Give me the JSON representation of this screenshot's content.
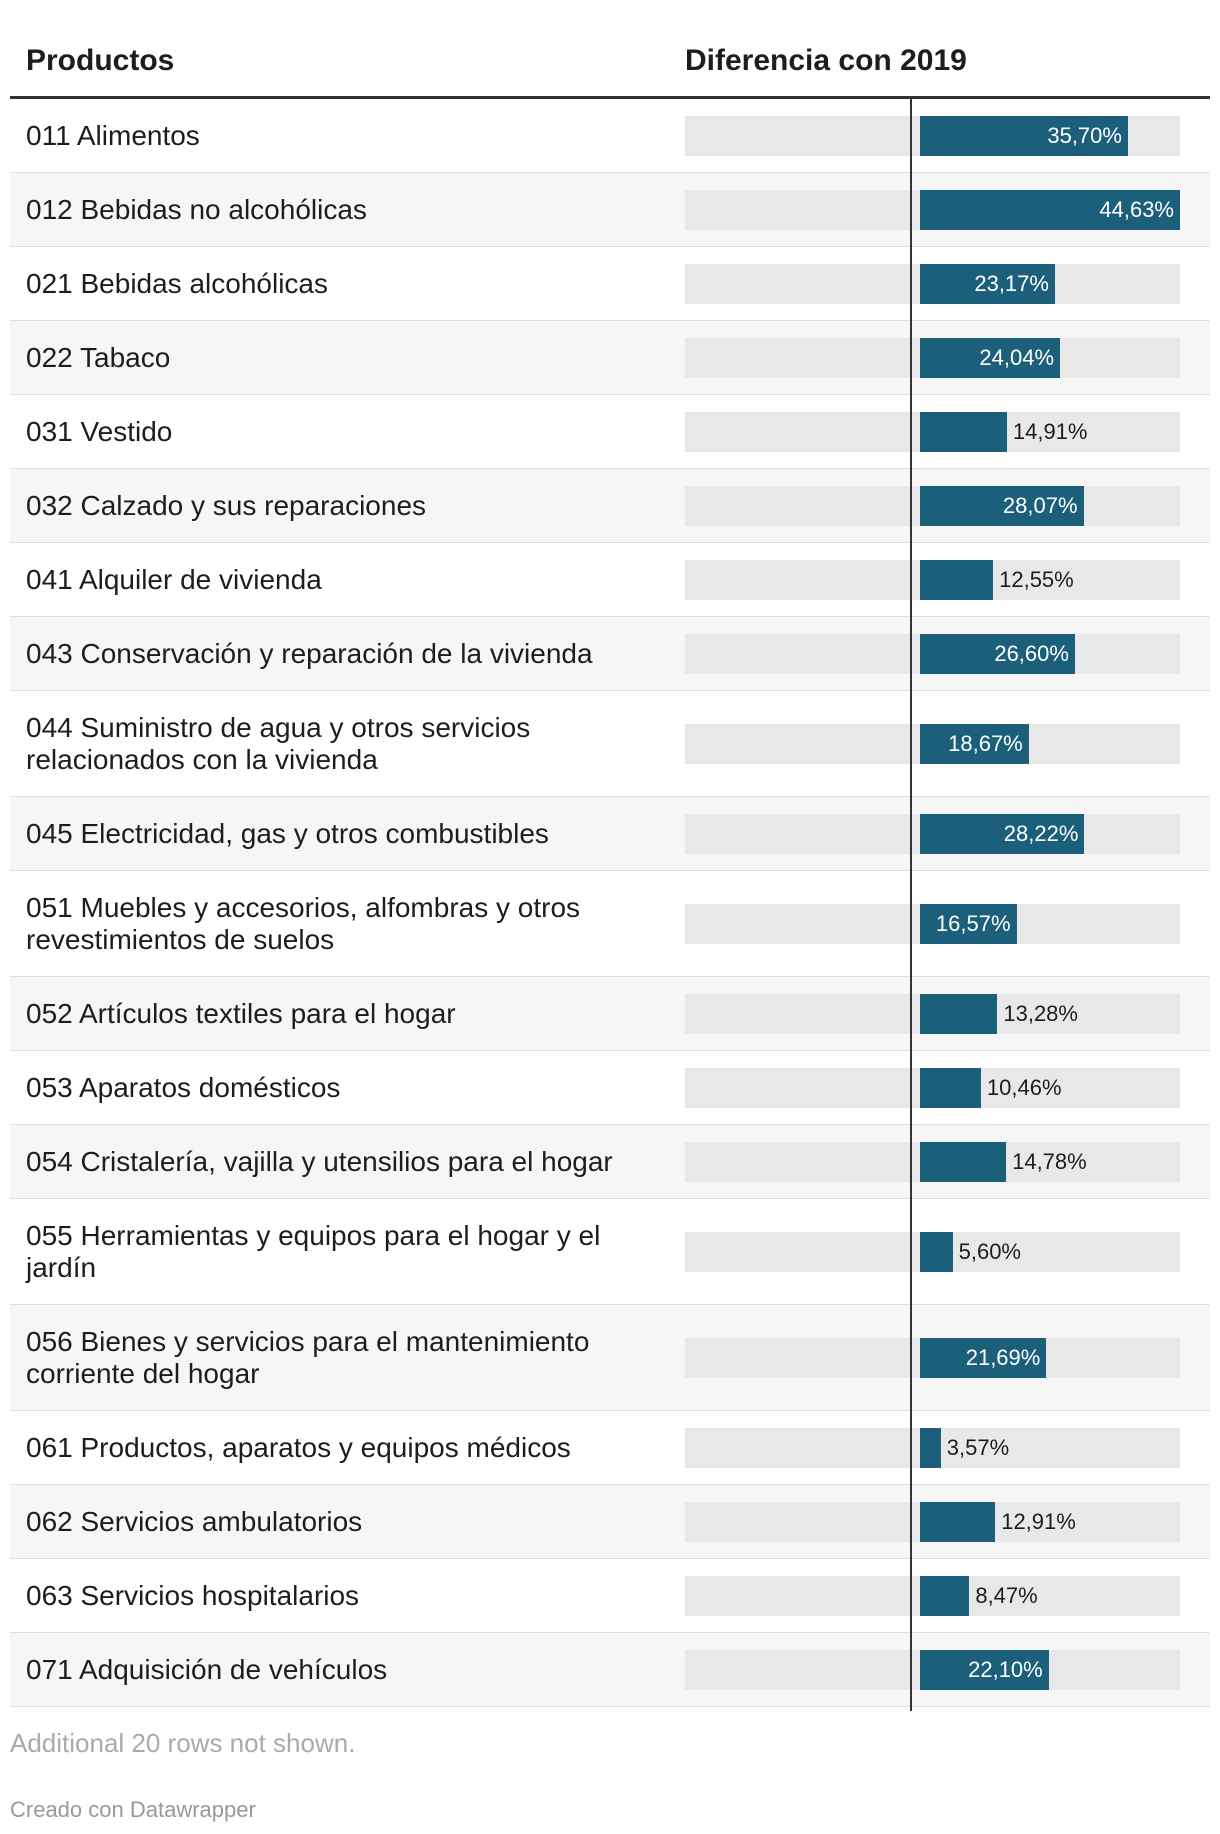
{
  "header": {
    "col_products": "Productos",
    "col_difference": "Diferencia con 2019"
  },
  "chart_data": {
    "type": "bar",
    "orientation": "horizontal",
    "title": "",
    "xlabel": "Diferencia con 2019",
    "ylabel": "Productos",
    "xlim": [
      0,
      44.63
    ],
    "unit": "%",
    "categories": [
      "011 Alimentos",
      "012 Bebidas no alcohólicas",
      "021 Bebidas alcohólicas",
      "022 Tabaco",
      "031 Vestido",
      "032 Calzado y sus reparaciones",
      "041 Alquiler de vivienda",
      "043 Conservación y reparación de la vivienda",
      "044 Suministro de agua y otros servicios relacionados con la vivienda",
      "045 Electricidad, gas y otros combustibles",
      "051 Muebles y accesorios, alfombras y otros revestimientos de suelos",
      "052 Artículos textiles para el hogar",
      "053 Aparatos domésticos",
      "054 Cristalería, vajilla y utensilios para el hogar",
      "055 Herramientas y equipos para el hogar y el jardín",
      "056 Bienes y servicios para el mantenimiento corriente del hogar",
      "061 Productos, aparatos y equipos médicos",
      "062 Servicios ambulatorios",
      "063 Servicios hospitalarios",
      "071 Adquisición de vehículos"
    ],
    "values": [
      35.7,
      44.63,
      23.17,
      24.04,
      14.91,
      28.07,
      12.55,
      26.6,
      18.67,
      28.22,
      16.57,
      13.28,
      10.46,
      14.78,
      5.6,
      21.69,
      3.57,
      12.91,
      8.47,
      22.1
    ],
    "value_labels": [
      "35,70%",
      "44,63%",
      "23,17%",
      "24,04%",
      "14,91%",
      "28,07%",
      "12,55%",
      "26,60%",
      "18,67%",
      "28,22%",
      "16,57%",
      "13,28%",
      "10,46%",
      "14,78%",
      "5,60%",
      "21,69%",
      "3,57%",
      "12,91%",
      "8,47%",
      "22,10%"
    ]
  },
  "colors": {
    "bar": "#1b5f7a",
    "track": "#e8e8e8",
    "row_alt": "#f6f6f6"
  },
  "footer": {
    "note": "Additional 20 rows not shown.",
    "credit": "Creado con Datawrapper"
  }
}
